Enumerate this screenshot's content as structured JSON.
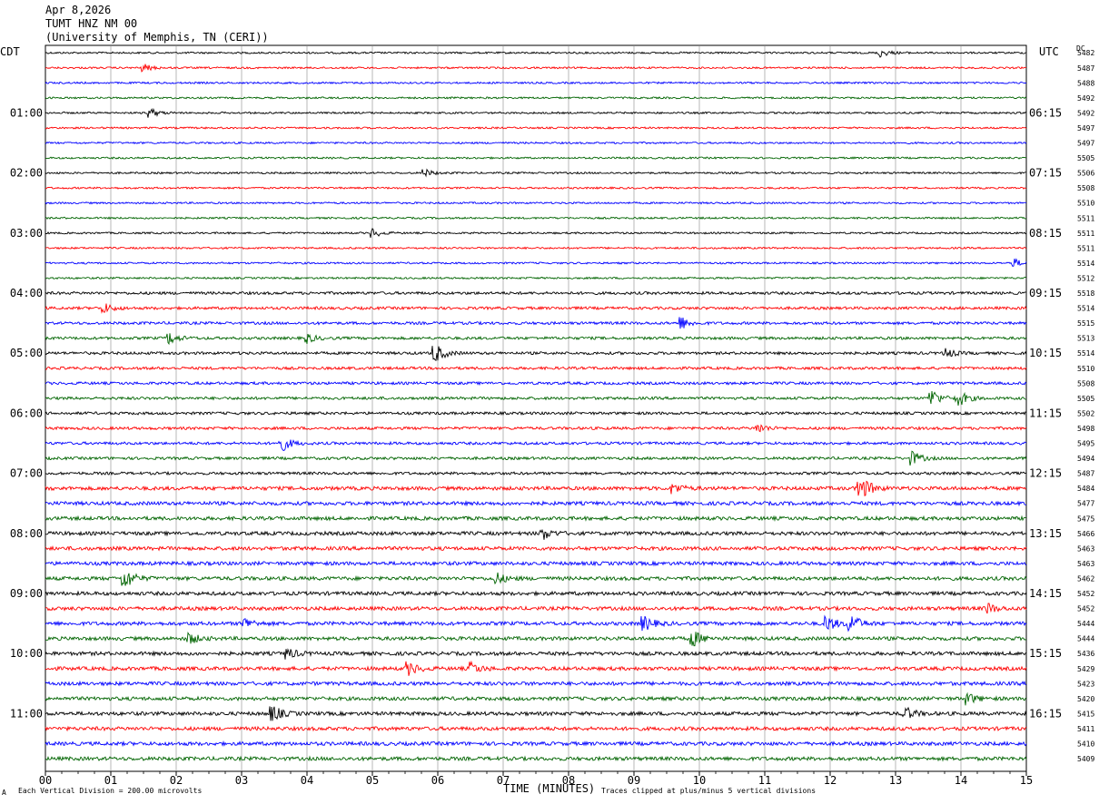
{
  "header": {
    "date": "Apr 8,2026",
    "station": "TUMT HNZ NM 00",
    "institution": "(University of Memphis, TN (CERI))"
  },
  "left_tz": "CDT",
  "right_tz": "UTC",
  "dc_label": "DC",
  "footer": {
    "scale_note": "Each Vertical Division =  200.00 microvolts",
    "clip_note": "Traces clipped at plus/minus 5 vertical divisions",
    "corner_mark": "A"
  },
  "chart_data": {
    "type": "line",
    "xlabel": "TIME (MINUTES)",
    "xlim": [
      0,
      15
    ],
    "x_ticks": [
      "00",
      "01",
      "02",
      "03",
      "04",
      "05",
      "06",
      "07",
      "08",
      "09",
      "10",
      "11",
      "12",
      "13",
      "14",
      "15"
    ],
    "trace_colors": [
      "#000000",
      "#ff0000",
      "#0000ff",
      "#006400"
    ],
    "left_hour_labels": [
      {
        "row": 4,
        "text": "01:00"
      },
      {
        "row": 8,
        "text": "02:00"
      },
      {
        "row": 12,
        "text": "03:00"
      },
      {
        "row": 16,
        "text": "04:00"
      },
      {
        "row": 20,
        "text": "05:00"
      },
      {
        "row": 24,
        "text": "06:00"
      },
      {
        "row": 28,
        "text": "07:00"
      },
      {
        "row": 32,
        "text": "08:00"
      },
      {
        "row": 36,
        "text": "09:00"
      },
      {
        "row": 40,
        "text": "10:00"
      },
      {
        "row": 44,
        "text": "11:00"
      }
    ],
    "right_hour_labels": [
      {
        "row": 4,
        "text": "06:15"
      },
      {
        "row": 8,
        "text": "07:15"
      },
      {
        "row": 12,
        "text": "08:15"
      },
      {
        "row": 16,
        "text": "09:15"
      },
      {
        "row": 20,
        "text": "10:15"
      },
      {
        "row": 24,
        "text": "11:15"
      },
      {
        "row": 28,
        "text": "12:15"
      },
      {
        "row": 32,
        "text": "13:15"
      },
      {
        "row": 36,
        "text": "14:15"
      },
      {
        "row": 40,
        "text": "15:15"
      },
      {
        "row": 44,
        "text": "16:15"
      }
    ],
    "dc_offsets": [
      "5482",
      "5487",
      "5488",
      "5492",
      "5492",
      "5497",
      "5497",
      "5505",
      "5506",
      "5508",
      "5510",
      "5511",
      "5511",
      "5511",
      "5514",
      "5512",
      "5518",
      "5514",
      "5515",
      "5513",
      "5514",
      "5510",
      "5508",
      "5505",
      "5502",
      "5498",
      "5495",
      "5494",
      "5487",
      "5484",
      "5477",
      "5475",
      "5466",
      "5463",
      "5463",
      "5462",
      "5452",
      "5452",
      "5444",
      "5444",
      "5436",
      "5429",
      "5423",
      "5420",
      "5415",
      "5411",
      "5410",
      "5409"
    ],
    "noise_levels": [
      2,
      2,
      2,
      2,
      2,
      2,
      2,
      2,
      2,
      2,
      2,
      2,
      2,
      2,
      2,
      2,
      3,
      3,
      3,
      3,
      3,
      3,
      3,
      3,
      3,
      3,
      3,
      3,
      3,
      4,
      4,
      4,
      4,
      4,
      4,
      4,
      4,
      4,
      4,
      4,
      4,
      4,
      4,
      4,
      4,
      4,
      4,
      4
    ],
    "events": [
      {
        "row": 0,
        "minute": 12.75,
        "amp": 5
      },
      {
        "row": 1,
        "minute": 1.5,
        "amp": 4
      },
      {
        "row": 4,
        "minute": 1.6,
        "amp": 5
      },
      {
        "row": 8,
        "minute": 5.8,
        "amp": 4
      },
      {
        "row": 12,
        "minute": 5.0,
        "amp": 5
      },
      {
        "row": 14,
        "minute": 14.8,
        "amp": 5
      },
      {
        "row": 17,
        "minute": 0.9,
        "amp": 5
      },
      {
        "row": 18,
        "minute": 9.7,
        "amp": 8
      },
      {
        "row": 19,
        "minute": 1.9,
        "amp": 6
      },
      {
        "row": 19,
        "minute": 4.0,
        "amp": 5
      },
      {
        "row": 20,
        "minute": 5.95,
        "amp": 12
      },
      {
        "row": 20,
        "minute": 13.75,
        "amp": 6
      },
      {
        "row": 23,
        "minute": 13.55,
        "amp": 10
      },
      {
        "row": 23,
        "minute": 13.95,
        "amp": 10
      },
      {
        "row": 25,
        "minute": 10.9,
        "amp": 5
      },
      {
        "row": 26,
        "minute": 3.6,
        "amp": 10
      },
      {
        "row": 27,
        "minute": 13.25,
        "amp": 8
      },
      {
        "row": 29,
        "minute": 12.45,
        "amp": 18
      },
      {
        "row": 29,
        "minute": 9.6,
        "amp": 6
      },
      {
        "row": 32,
        "minute": 7.6,
        "amp": 7
      },
      {
        "row": 35,
        "minute": 1.2,
        "amp": 14
      },
      {
        "row": 35,
        "minute": 6.9,
        "amp": 6
      },
      {
        "row": 37,
        "minute": 14.4,
        "amp": 6
      },
      {
        "row": 38,
        "minute": 9.15,
        "amp": 9
      },
      {
        "row": 38,
        "minute": 11.95,
        "amp": 9
      },
      {
        "row": 38,
        "minute": 12.3,
        "amp": 12
      },
      {
        "row": 38,
        "minute": 3.05,
        "amp": 6
      },
      {
        "row": 39,
        "minute": 9.9,
        "amp": 9
      },
      {
        "row": 39,
        "minute": 2.2,
        "amp": 6
      },
      {
        "row": 40,
        "minute": 3.7,
        "amp": 6
      },
      {
        "row": 41,
        "minute": 5.55,
        "amp": 8
      },
      {
        "row": 41,
        "minute": 6.5,
        "amp": 7
      },
      {
        "row": 43,
        "minute": 14.1,
        "amp": 6
      },
      {
        "row": 44,
        "minute": 3.45,
        "amp": 11
      },
      {
        "row": 44,
        "minute": 13.15,
        "amp": 7
      }
    ]
  }
}
